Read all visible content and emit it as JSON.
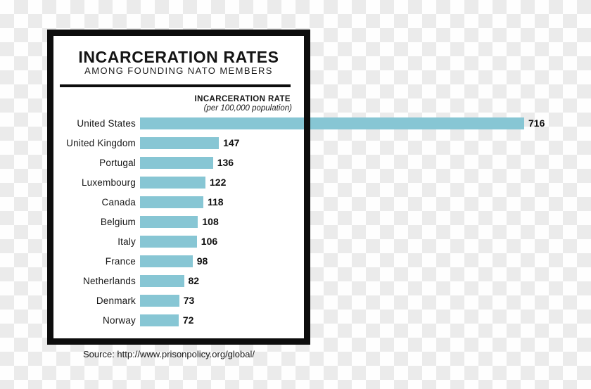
{
  "figure": {
    "title": "INCARCERATION RATES",
    "subtitle": "AMONG FOUNDING NATO MEMBERS",
    "axis_header": "INCARCERATION RATE",
    "axis_subheader": "(per 100,000 population)",
    "source": "Source: http://www.prisonpolicy.org/global/"
  },
  "chart_data": {
    "type": "bar",
    "orientation": "horizontal",
    "title": "INCARCERATION RATES",
    "subtitle": "AMONG FOUNDING NATO MEMBERS",
    "value_axis_label": "INCARCERATION RATE (per 100,000 population)",
    "categories": [
      "United States",
      "United Kingdom",
      "Portugal",
      "Luxembourg",
      "Canada",
      "Belgium",
      "Italy",
      "France",
      "Netherlands",
      "Denmark",
      "Norway"
    ],
    "values": [
      716,
      147,
      136,
      122,
      118,
      108,
      106,
      98,
      82,
      73,
      72
    ],
    "data_labels": true,
    "grid": false,
    "legend": false,
    "xlim": [
      0,
      750
    ],
    "bar_color": "#87c6d4",
    "source": "Source: http://www.prisonpolicy.org/global/"
  },
  "colors": {
    "bar": "#87c6d4",
    "frame": "#0d0d0d",
    "text": "#161616",
    "panel": "#ffffff",
    "checker_light": "#fefefe",
    "checker_dark": "#ebebeb"
  }
}
